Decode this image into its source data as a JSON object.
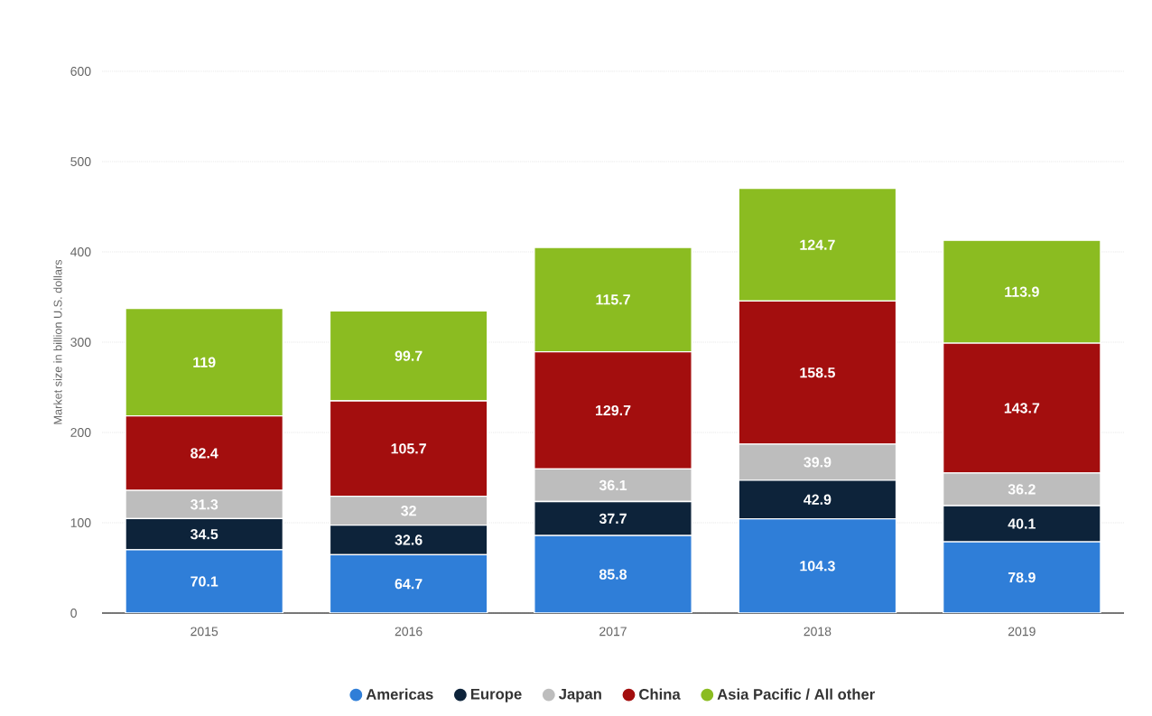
{
  "chart_data": {
    "type": "bar",
    "stacked": true,
    "ylabel": "Market size in billion U.S. dollars",
    "categories": [
      "2015",
      "2016",
      "2017",
      "2018",
      "2019"
    ],
    "series": [
      {
        "name": "Americas",
        "color": "#2f7ed8",
        "values": [
          70.1,
          64.7,
          85.8,
          104.3,
          78.9
        ]
      },
      {
        "name": "Europe",
        "color": "#0d233a",
        "values": [
          34.5,
          32.6,
          37.7,
          42.9,
          40.1
        ]
      },
      {
        "name": "Japan",
        "color": "#bdbdbd",
        "values": [
          31.3,
          32,
          36.1,
          39.9,
          36.2
        ]
      },
      {
        "name": "China",
        "color": "#a30e0e",
        "values": [
          82.4,
          105.7,
          129.7,
          158.5,
          143.7
        ]
      },
      {
        "name": "Asia Pacific / All other",
        "color": "#8bbc21",
        "values": [
          119,
          99.7,
          115.7,
          124.7,
          113.9
        ]
      }
    ],
    "ylim": [
      0,
      600
    ],
    "yticks": [
      0,
      100,
      200,
      300,
      400,
      500,
      600
    ],
    "grid": "y",
    "legend": "bottom",
    "data_labels": true
  }
}
